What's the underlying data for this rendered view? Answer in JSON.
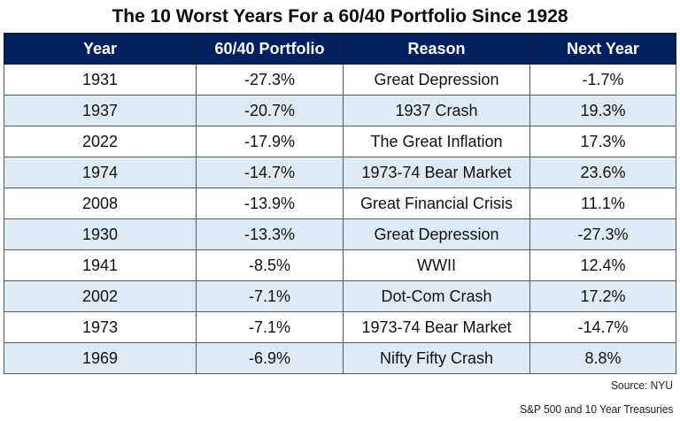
{
  "chart_data": {
    "type": "table",
    "title": "The 10 Worst Years For a 60/40 Portfolio Since 1928",
    "columns": [
      "Year",
      "60/40 Portfolio",
      "Reason",
      "Next Year"
    ],
    "rows": [
      {
        "year": "1931",
        "portfolio": "-27.3%",
        "reason": "Great Depression",
        "next_year": "-1.7%"
      },
      {
        "year": "1937",
        "portfolio": "-20.7%",
        "reason": "1937 Crash",
        "next_year": "19.3%"
      },
      {
        "year": "2022",
        "portfolio": "-17.9%",
        "reason": "The Great Inflation",
        "next_year": "17.3%"
      },
      {
        "year": "1974",
        "portfolio": "-14.7%",
        "reason": "1973-74 Bear Market",
        "next_year": "23.6%"
      },
      {
        "year": "2008",
        "portfolio": "-13.9%",
        "reason": "Great Financial Crisis",
        "next_year": "11.1%"
      },
      {
        "year": "1930",
        "portfolio": "-13.3%",
        "reason": "Great Depression",
        "next_year": "-27.3%"
      },
      {
        "year": "1941",
        "portfolio": "-8.5%",
        "reason": "WWII",
        "next_year": "12.4%"
      },
      {
        "year": "2002",
        "portfolio": "-7.1%",
        "reason": "Dot-Com Crash",
        "next_year": "17.2%"
      },
      {
        "year": "1973",
        "portfolio": "-7.1%",
        "reason": "1973-74 Bear Market",
        "next_year": "-14.7%"
      },
      {
        "year": "1969",
        "portfolio": "-6.9%",
        "reason": "Nifty Fifty Crash",
        "next_year": "8.8%"
      }
    ],
    "footnotes": [
      "Source: NYU",
      "S&P 500 and 10 Year Treasuries"
    ]
  },
  "colors": {
    "header_bg": "#002060",
    "header_text": "#ffffff",
    "alt_row_bg": "#ddebf7",
    "row_bg": "#ffffff"
  }
}
